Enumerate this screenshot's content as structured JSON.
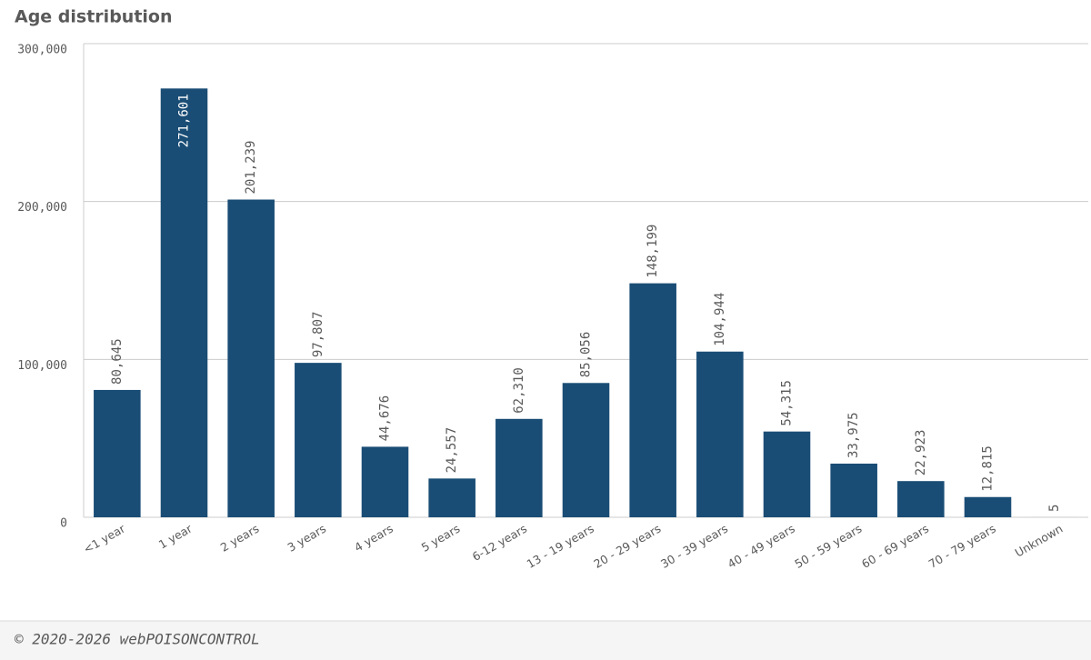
{
  "chart_data": {
    "type": "bar",
    "title": "Age distribution",
    "categories": [
      "<1 year",
      "1 year",
      "2 years",
      "3 years",
      "4 years",
      "5 years",
      "6-12 years",
      "13 - 19 years",
      "20 - 29 years",
      "30 - 39 years",
      "40 - 49 years",
      "50 - 59 years",
      "60 - 69 years",
      "70 - 79 years",
      "Unknown"
    ],
    "values": [
      80645,
      271601,
      201239,
      97807,
      44676,
      24557,
      62310,
      85056,
      148199,
      104944,
      54315,
      33975,
      22923,
      12815,
      5
    ],
    "value_labels": [
      "80,645",
      "271,601",
      "201,239",
      "97,807",
      "44,676",
      "24,557",
      "62,310",
      "85,056",
      "148,199",
      "104,944",
      "54,315",
      "33,975",
      "22,923",
      "12,815",
      "5"
    ],
    "color": "#1a4d75",
    "ylim": [
      0,
      300000
    ],
    "yticks": [
      0,
      {
        "value": 100000,
        "label": "100,000"
      },
      {
        "value": 200000,
        "label": "200,000"
      },
      {
        "value": 300000,
        "label": "300,000"
      }
    ],
    "grid": true
  },
  "footer": "© 2020-2026 webPOISONCONTROL"
}
